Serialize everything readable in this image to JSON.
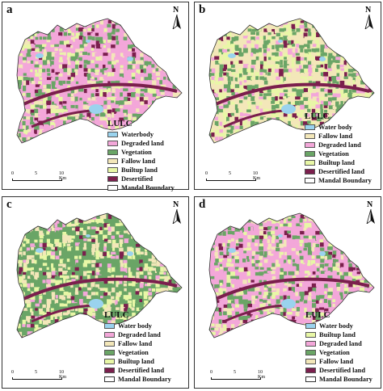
{
  "colors": {
    "waterbody": "#9ad3ee",
    "degraded": "#f3a7d9",
    "fallow": "#f3e7b9",
    "vegetation": "#6aa566",
    "builtup": "#e8f7a6",
    "desertified": "#7b1f4d",
    "boundary": "#333333"
  },
  "panels": [
    {
      "label": "a",
      "north": "N",
      "legend_title": "LULC",
      "legend": [
        {
          "label": "Waterbody",
          "color": "#9ad3ee"
        },
        {
          "label": "Degraded land",
          "color": "#f3a7d9"
        },
        {
          "label": "Vegetation",
          "color": "#6aa566"
        },
        {
          "label": "Fallow land",
          "color": "#f3e7b9"
        },
        {
          "label": "Builtup land",
          "color": "#e8f7a6"
        },
        {
          "label": "Desertified",
          "color": "#7b1f4d"
        },
        {
          "label": "Mandal Boundary",
          "color": "line"
        }
      ],
      "scale": [
        "0",
        "5",
        "10 Km"
      ],
      "dominant": "degraded"
    },
    {
      "label": "b",
      "north": "N",
      "legend_title": "LULC",
      "legend": [
        {
          "label": "Water body",
          "color": "#9ad3ee"
        },
        {
          "label": "Fallow land",
          "color": "#f3e7b9"
        },
        {
          "label": "Degraded land",
          "color": "#f3a7d9"
        },
        {
          "label": "Vegetation",
          "color": "#6aa566"
        },
        {
          "label": "Builtup land",
          "color": "#e8f7a6"
        },
        {
          "label": "Desertified land",
          "color": "#7b1f4d"
        },
        {
          "label": "Mandal Boundary",
          "color": "line"
        }
      ],
      "scale": [
        "0",
        "5",
        "10 Km"
      ],
      "dominant": "mixed"
    },
    {
      "label": "c",
      "north": "N",
      "legend_title": "LULC",
      "legend": [
        {
          "label": "Water body",
          "color": "#9ad3ee"
        },
        {
          "label": "Degraded land",
          "color": "#f3a7d9"
        },
        {
          "label": "Fallow land",
          "color": "#f3e7b9"
        },
        {
          "label": "Vegetation",
          "color": "#6aa566"
        },
        {
          "label": "Builtup land",
          "color": "#e8f7a6"
        },
        {
          "label": "Desertified land",
          "color": "#7b1f4d"
        },
        {
          "label": "Mandal Boundary",
          "color": "line"
        }
      ],
      "scale": [
        "0",
        "5",
        "10 Km"
      ],
      "dominant": "vegetation"
    },
    {
      "label": "d",
      "north": "N",
      "legend_title": "LULC",
      "legend": [
        {
          "label": "Water body",
          "color": "#9ad3ee"
        },
        {
          "label": "Builtup land",
          "color": "#e8f7a6"
        },
        {
          "label": "Degraded land",
          "color": "#f3a7d9"
        },
        {
          "label": "Vegetation",
          "color": "#6aa566"
        },
        {
          "label": "Fallow land",
          "color": "#f3e7b9"
        },
        {
          "label": "Desertified land",
          "color": "#7b1f4d"
        },
        {
          "label": "Mandal Boundary",
          "color": "line"
        }
      ],
      "scale": [
        "0",
        "5",
        "10 Km"
      ],
      "dominant": "degraded"
    }
  ]
}
